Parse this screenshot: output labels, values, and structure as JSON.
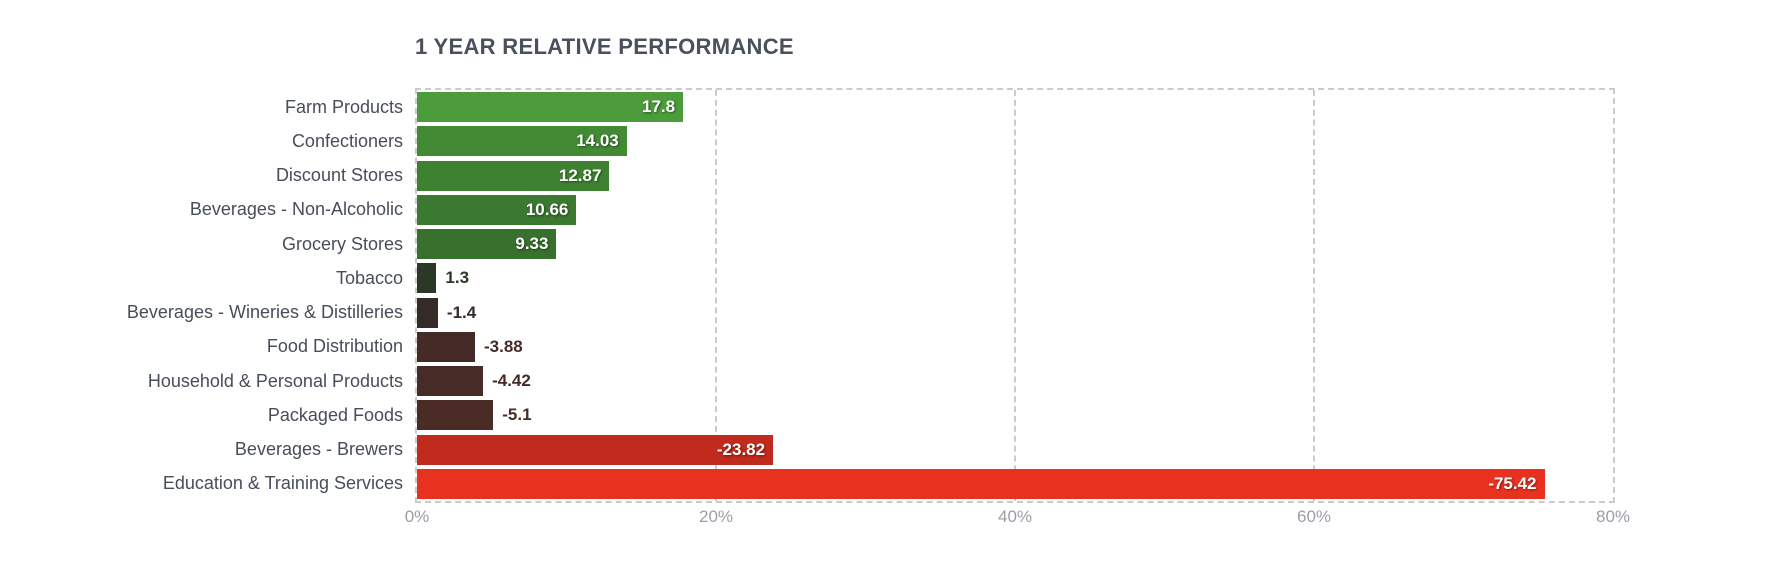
{
  "title": "1 YEAR RELATIVE PERFORMANCE",
  "colors": {
    "title_text": "#4a505c",
    "category_text": "#474d59",
    "axis_text": "#9b9ea6",
    "grid": "#cbcbcb",
    "inside_value_text": "#ffffff"
  },
  "chart_data": {
    "type": "bar",
    "orientation": "horizontal",
    "title": "1 YEAR RELATIVE PERFORMANCE",
    "categories": [
      "Farm Products",
      "Confectioners",
      "Discount Stores",
      "Beverages - Non-Alcoholic",
      "Grocery Stores",
      "Tobacco",
      "Beverages - Wineries & Distilleries",
      "Food Distribution",
      "Household & Personal Products",
      "Packaged Foods",
      "Beverages - Brewers",
      "Education & Training Services"
    ],
    "values": [
      17.8,
      14.03,
      12.87,
      10.66,
      9.33,
      1.3,
      -1.4,
      -3.88,
      -4.42,
      -5.1,
      -23.82,
      -75.42
    ],
    "value_labels": [
      "17.8",
      "14.03",
      "12.87",
      "10.66",
      "9.33",
      "1.3",
      "-1.4",
      "-3.88",
      "-4.42",
      "-5.1",
      "-23.82",
      "-75.42"
    ],
    "bar_colors": [
      "#4c9c3b",
      "#428a34",
      "#3e8231",
      "#3b7830",
      "#38702d",
      "#2b3827",
      "#342a28",
      "#452b27",
      "#472b27",
      "#4a2b26",
      "#c02b1e",
      "#e8321f"
    ],
    "xlabel": "",
    "ylabel": "",
    "x_axis": {
      "range": [
        0,
        80
      ],
      "ticks": [
        {
          "value": 0,
          "label": "0%"
        },
        {
          "value": 20,
          "label": "20%"
        },
        {
          "value": 40,
          "label": "40%"
        },
        {
          "value": 60,
          "label": "60%"
        },
        {
          "value": 80,
          "label": "80%"
        }
      ],
      "note": "bars drawn by absolute value; sign encoded by color (green positive, red negative)"
    },
    "grid": "dashed vertical gridlines at 20% intervals, dashed plot frame",
    "legend": null,
    "inside_label_min_abs": 9
  }
}
